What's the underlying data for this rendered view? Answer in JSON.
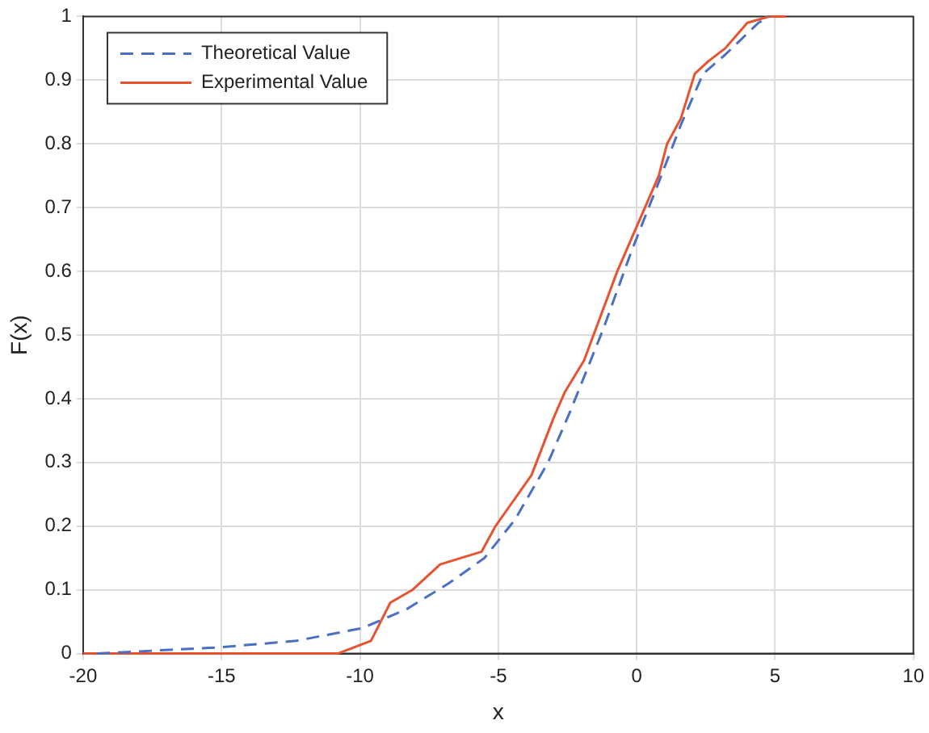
{
  "chart_data": {
    "type": "line",
    "xlabel": "x",
    "ylabel": "F(x)",
    "xlim": [
      -20,
      10
    ],
    "xticks": [
      -20,
      -15,
      -10,
      -5,
      0,
      5,
      10
    ],
    "ylim": [
      0,
      1
    ],
    "yticks": [
      0,
      0.1,
      0.2,
      0.3,
      0.4,
      0.5,
      0.6,
      0.7,
      0.8,
      0.9,
      1
    ],
    "grid": true,
    "legend": "top left",
    "marker": "none",
    "series": [
      {
        "name": "Theoretical Value",
        "color": "#4a6fc4",
        "line_style": "dashed",
        "x": [
          -19.5,
          -15,
          -12.3,
          -9.9,
          -8.3,
          -6.8,
          -5.5,
          -4.4,
          -3.2,
          -2.4,
          -1.2,
          -0.2,
          0.8,
          1.6,
          2.4,
          3.2,
          4.4,
          4.8
        ],
        "values": [
          0,
          0.01,
          0.02,
          0.04,
          0.07,
          0.11,
          0.15,
          0.21,
          0.3,
          0.38,
          0.51,
          0.63,
          0.74,
          0.83,
          0.91,
          0.94,
          0.99,
          1
        ]
      },
      {
        "name": "Experimental Value",
        "color": "#e8532f",
        "line_style": "solid",
        "x": [
          -20,
          -10.8,
          -9.6,
          -8.9,
          -8.1,
          -7.1,
          -5.6,
          -5.1,
          -3.8,
          -3,
          -2.6,
          -1.9,
          -0.7,
          0,
          0.8,
          1.1,
          1.6,
          2.1,
          2.6,
          3.2,
          4,
          4.8,
          5.4
        ],
        "values": [
          0,
          0,
          0.02,
          0.08,
          0.1,
          0.14,
          0.16,
          0.2,
          0.28,
          0.37,
          0.41,
          0.46,
          0.6,
          0.67,
          0.75,
          0.8,
          0.84,
          0.91,
          0.93,
          0.95,
          0.99,
          1,
          1
        ]
      }
    ]
  }
}
